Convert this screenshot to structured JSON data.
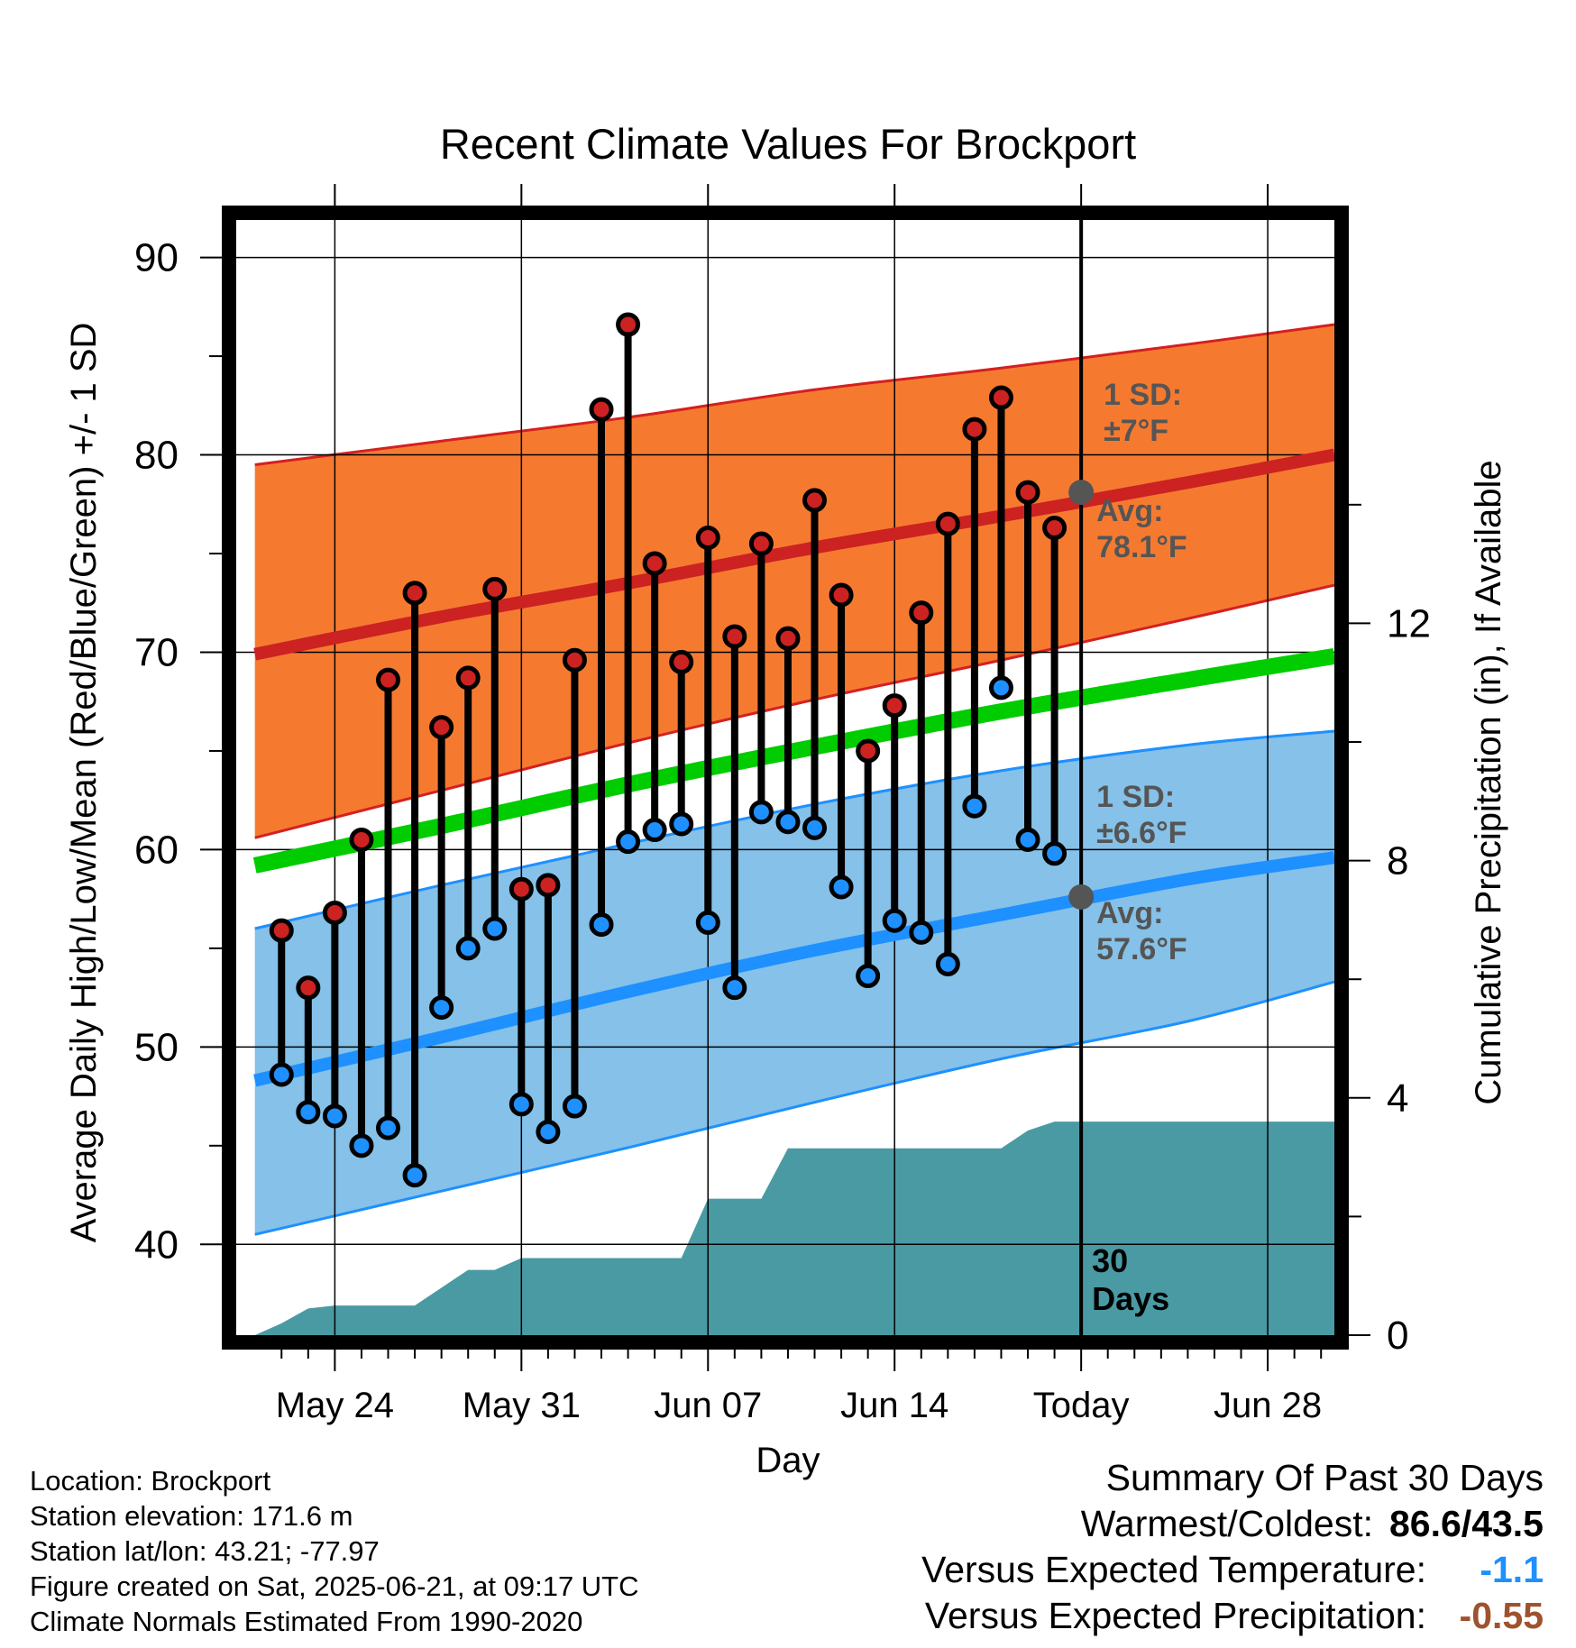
{
  "chart_data": {
    "type": "line",
    "title": "Recent Climate Values For Brockport",
    "xlabel": "Day",
    "ylabel": "Average Daily High/Low/Mean (Red/Blue/Green) +/- 1 SD",
    "y2label": "Cumulative Precipitation (in), If Available",
    "ylim": [
      35.4,
      91.9
    ],
    "y2lim": [
      0,
      18.8
    ],
    "yticks": [
      "40",
      "50",
      "60",
      "70",
      "80",
      "90"
    ],
    "y2ticks": [
      "0",
      "4",
      "8",
      "12"
    ],
    "x_ticks": [
      "May 24",
      "May 31",
      "Jun 07",
      "Jun 14",
      "Today",
      "Jun 28"
    ],
    "x_tick_days": [
      3,
      10,
      17,
      24,
      31,
      38
    ],
    "xlim": [
      -0.7,
      40.5
    ],
    "grid": true,
    "today_day": 31,
    "period_label": [
      "30",
      "Days"
    ],
    "daily": {
      "day": [
        1,
        2,
        3,
        4,
        5,
        6,
        7,
        8,
        9,
        10,
        11,
        12,
        13,
        14,
        15,
        16,
        17,
        18,
        19,
        20,
        21,
        22,
        23,
        24,
        25,
        26,
        27,
        28,
        29,
        30
      ],
      "high": [
        55.9,
        53.0,
        56.8,
        60.5,
        68.6,
        73.0,
        66.2,
        68.7,
        73.2,
        58.0,
        58.2,
        69.6,
        82.3,
        86.6,
        74.5,
        69.5,
        75.8,
        70.8,
        75.5,
        70.7,
        77.7,
        72.9,
        65.0,
        67.3,
        72.0,
        76.5,
        81.3,
        82.9,
        78.1,
        76.3
      ],
      "low": [
        48.6,
        46.7,
        46.5,
        45.0,
        45.9,
        43.5,
        52.0,
        55.0,
        56.0,
        47.1,
        45.7,
        47.0,
        56.2,
        60.4,
        61.0,
        61.3,
        56.3,
        53.0,
        61.9,
        61.4,
        61.1,
        58.1,
        53.6,
        56.4,
        55.8,
        54.2,
        62.2,
        68.2,
        60.5,
        59.8
      ]
    },
    "normals": {
      "day": [
        0,
        7,
        14,
        21,
        28,
        35,
        40.5
      ],
      "avg_high": [
        69.9,
        71.8,
        73.5,
        75.3,
        76.9,
        78.6,
        80.0
      ],
      "high_plus_sd": [
        79.5,
        80.7,
        81.9,
        83.3,
        84.4,
        85.6,
        86.6
      ],
      "high_minus_sd": [
        60.6,
        63.0,
        65.4,
        67.6,
        69.6,
        71.7,
        73.4
      ],
      "avg_mean": [
        59.2,
        61.2,
        63.3,
        65.2,
        67.0,
        68.6,
        69.8
      ],
      "avg_low": [
        48.3,
        50.5,
        52.8,
        54.9,
        56.7,
        58.5,
        59.6
      ],
      "low_plus_sd": [
        56.0,
        58.2,
        60.3,
        62.3,
        64.0,
        65.3,
        66.0
      ],
      "low_minus_sd": [
        40.5,
        42.7,
        44.9,
        47.2,
        49.4,
        51.3,
        53.3
      ]
    },
    "precip": {
      "day": [
        0,
        1,
        2,
        3,
        6,
        7,
        8,
        9,
        10,
        11,
        12,
        13,
        14,
        15,
        16,
        17,
        18,
        19,
        20,
        21,
        22,
        23,
        24,
        25,
        26,
        27,
        28,
        29,
        30,
        40.5
      ],
      "cumulative": [
        0,
        0.2,
        0.45,
        0.5,
        0.5,
        0.8,
        1.1,
        1.1,
        1.3,
        1.3,
        1.3,
        1.3,
        1.3,
        1.3,
        1.3,
        2.3,
        2.3,
        2.3,
        3.15,
        3.15,
        3.15,
        3.15,
        3.15,
        3.15,
        3.15,
        3.15,
        3.15,
        3.45,
        3.6,
        3.6
      ]
    },
    "annotations": {
      "high_sd": [
        "1 SD:",
        "±7°F"
      ],
      "high_avg": [
        "Avg:",
        "78.1°F"
      ],
      "low_sd": [
        "1 SD:",
        "±6.6°F"
      ],
      "low_avg": [
        "Avg:",
        "57.6°F"
      ]
    },
    "today_high_avg": 78.1,
    "today_low_avg": 57.6
  },
  "info": {
    "location": "Location: Brockport",
    "elevation": "Station elevation: 171.6 m",
    "latlon": "Station lat/lon: 43.21; -77.97",
    "created": "Figure created on Sat, 2025-06-21, at 09:17 UTC",
    "normals": "Climate Normals Estimated From 1990-2020"
  },
  "summary": {
    "title": "Summary Of Past 30 Days",
    "warmest_label": "Warmest/Coldest:",
    "warmest_value": "86.6/43.5",
    "temp_label": "Versus Expected Temperature:",
    "temp_value": "-1.1",
    "precip_label": "Versus Expected Precipitation:",
    "precip_value": "-0.55",
    "temp_color": "#1e90ff",
    "precip_color": "#a0522d"
  },
  "colors": {
    "high_band": "#f57a30",
    "high_band_edge": "#d42020",
    "high_line": "#cc2222",
    "low_band": "#85c1e8",
    "low_band_edge": "#1e90ff",
    "low_line": "#1e90ff",
    "mean_line": "#00cc00",
    "precip_fill": "#4a9aa4",
    "high_marker": "#cc2222",
    "low_marker": "#1e90ff",
    "annotation": "#555555"
  }
}
